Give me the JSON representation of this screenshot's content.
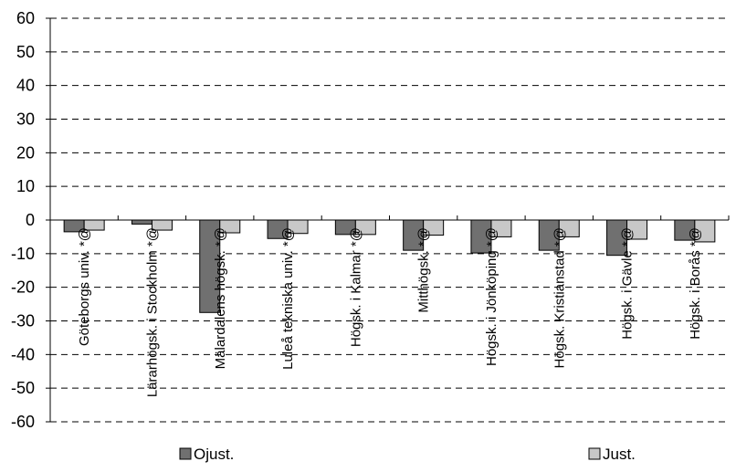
{
  "chart_data": {
    "type": "bar",
    "title": "",
    "xlabel": "",
    "ylabel": "",
    "ylim": [
      -60,
      60
    ],
    "yticks": [
      60,
      50,
      40,
      30,
      20,
      10,
      0,
      -10,
      -20,
      -30,
      -40,
      -50,
      -60
    ],
    "grid": true,
    "legend_position": "bottom",
    "categories": [
      "Göteborgs univ. *@",
      "Lärarhögsk. i Stockholm *@",
      "Mälardalens högsk. *@",
      "Luleå tekniska univ. *@",
      "Högsk. i Kalmar *@",
      "Mitthögsk. *@",
      "Högsk. i Jönköping *@",
      "Högsk. Kristianstad *@",
      "Högsk. i Gävle *@",
      "Högsk. i Borås *@"
    ],
    "series": [
      {
        "name": "Ojust.",
        "color": "#707070",
        "values": [
          -3.5,
          -1.2,
          -27.5,
          -5.5,
          -4.3,
          -9,
          -9.8,
          -9,
          -10.5,
          -6
        ]
      },
      {
        "name": "Just.",
        "color": "#c8c8c8",
        "values": [
          -3,
          -3,
          -3.8,
          -4,
          -4.3,
          -4.5,
          -5,
          -5,
          -5.7,
          -6.5
        ]
      }
    ]
  }
}
